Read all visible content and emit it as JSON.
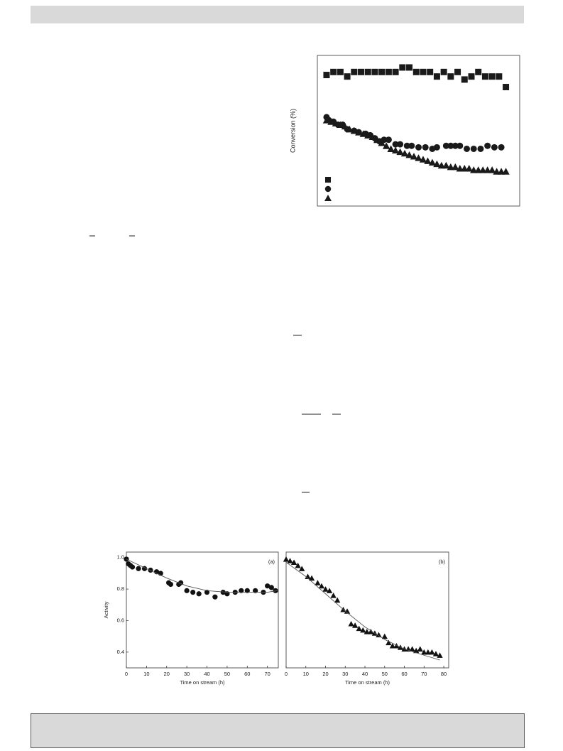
{
  "chart_data": [
    {
      "type": "scatter",
      "ylabel": "Conversion (%)",
      "xlim": [
        -4,
        84
      ],
      "ylim": [
        0,
        100
      ],
      "series": [
        {
          "marker": "square",
          "color": "#1a1a1a",
          "x": [
            0,
            3,
            6,
            9,
            12,
            15,
            18,
            21,
            24,
            27,
            30,
            33,
            36,
            39,
            42,
            45,
            48,
            51,
            54,
            57,
            60,
            63,
            66,
            69,
            72,
            75,
            78
          ],
          "values": [
            87,
            89,
            89,
            86,
            89,
            89,
            89,
            89,
            89,
            89,
            89,
            92,
            92,
            89,
            89,
            89,
            86,
            89,
            86,
            89,
            84,
            86,
            89,
            86,
            86,
            86,
            79
          ]
        },
        {
          "marker": "circle",
          "color": "#1a1a1a",
          "x": [
            0,
            1,
            3,
            5,
            7,
            9,
            12,
            14,
            17,
            19,
            21,
            23,
            25,
            27,
            30,
            32,
            35,
            37,
            40,
            43,
            46,
            48,
            52,
            54,
            56,
            58,
            61,
            64,
            67,
            70,
            73,
            76
          ],
          "values": [
            59,
            57,
            56,
            54,
            54,
            51,
            50,
            49,
            48,
            47,
            45,
            43,
            44,
            44,
            41,
            41,
            40,
            40,
            39,
            39,
            38,
            39,
            40,
            40,
            40,
            40,
            38,
            38,
            38,
            40,
            39,
            39
          ]
        },
        {
          "marker": "triangle",
          "color": "#1a1a1a",
          "x": [
            0,
            2,
            4,
            6,
            8,
            10,
            12,
            14,
            16,
            18,
            20,
            22,
            24,
            26,
            28,
            30,
            32,
            34,
            36,
            38,
            40,
            42,
            44,
            46,
            48,
            50,
            52,
            54,
            56,
            58,
            60,
            62,
            64,
            66,
            68,
            70,
            72,
            74,
            76,
            78
          ],
          "values": [
            57,
            56,
            55,
            54,
            53,
            51,
            50,
            49,
            48,
            47,
            46,
            44,
            42,
            40,
            38,
            37,
            36,
            35,
            34,
            33,
            32,
            31,
            30,
            29,
            28,
            27,
            27,
            26,
            26,
            25,
            25,
            25,
            24,
            24,
            24,
            24,
            24,
            23,
            23,
            23
          ]
        }
      ]
    },
    {
      "type": "scatter",
      "annotation": "(a)",
      "xlabel": "Time on stream (h)",
      "ylabel": "Activity",
      "xlim": [
        0,
        75.4
      ],
      "ylim": [
        0.3,
        1.035
      ],
      "xticks": [
        0,
        10,
        20,
        30,
        40,
        50,
        60,
        70
      ],
      "yticks": [
        0.4,
        0.6,
        0.8,
        {
          "value": 1,
          "label": "1.0"
        }
      ],
      "series": [
        {
          "marker": "circle",
          "color": "#111111",
          "x": [
            0,
            1,
            2,
            3,
            6,
            9,
            12,
            15,
            17,
            21,
            22,
            26,
            27,
            30,
            33,
            36,
            40,
            44,
            48,
            50,
            54,
            57,
            60,
            64,
            68,
            70,
            72,
            74
          ],
          "values": [
            0.99,
            0.96,
            0.95,
            0.94,
            0.93,
            0.93,
            0.92,
            0.91,
            0.9,
            0.84,
            0.83,
            0.83,
            0.84,
            0.79,
            0.78,
            0.77,
            0.78,
            0.75,
            0.78,
            0.77,
            0.78,
            0.79,
            0.79,
            0.79,
            0.78,
            0.82,
            0.81,
            0.79
          ]
        },
        {
          "marker": "line",
          "color": "#555555",
          "x": [
            0,
            10,
            20,
            30,
            40,
            50,
            60,
            70,
            75
          ],
          "values": [
            0.99,
            0.93,
            0.87,
            0.82,
            0.79,
            0.78,
            0.78,
            0.78,
            0.79
          ]
        }
      ]
    },
    {
      "type": "scatter",
      "annotation": "(b)",
      "xlabel": "Time on stream (h)",
      "xlim": [
        0,
        82.5
      ],
      "ylim": [
        0.3,
        1.035
      ],
      "xticks": [
        0,
        10,
        20,
        30,
        40,
        50,
        60,
        70,
        80
      ],
      "series": [
        {
          "marker": "triangle",
          "color": "#111111",
          "x": [
            0,
            2,
            4,
            6,
            8,
            11,
            13,
            16,
            18,
            20,
            22,
            24,
            26,
            29,
            31,
            33,
            35,
            37,
            39,
            41,
            43,
            45,
            47,
            50,
            52,
            54,
            56,
            58,
            60,
            62,
            64,
            66,
            68,
            70,
            72,
            74,
            76,
            78
          ],
          "values": [
            0.99,
            0.98,
            0.97,
            0.95,
            0.93,
            0.88,
            0.87,
            0.84,
            0.82,
            0.8,
            0.79,
            0.76,
            0.73,
            0.67,
            0.66,
            0.58,
            0.57,
            0.55,
            0.54,
            0.53,
            0.53,
            0.52,
            0.51,
            0.5,
            0.46,
            0.44,
            0.44,
            0.43,
            0.42,
            0.42,
            0.42,
            0.41,
            0.42,
            0.4,
            0.4,
            0.4,
            0.39,
            0.38
          ]
        },
        {
          "marker": "line",
          "color": "#555555",
          "x": [
            0,
            10,
            20,
            30,
            40,
            50,
            60,
            70,
            78
          ],
          "values": [
            0.97,
            0.88,
            0.77,
            0.66,
            0.56,
            0.48,
            0.42,
            0.38,
            0.35
          ]
        }
      ]
    }
  ]
}
